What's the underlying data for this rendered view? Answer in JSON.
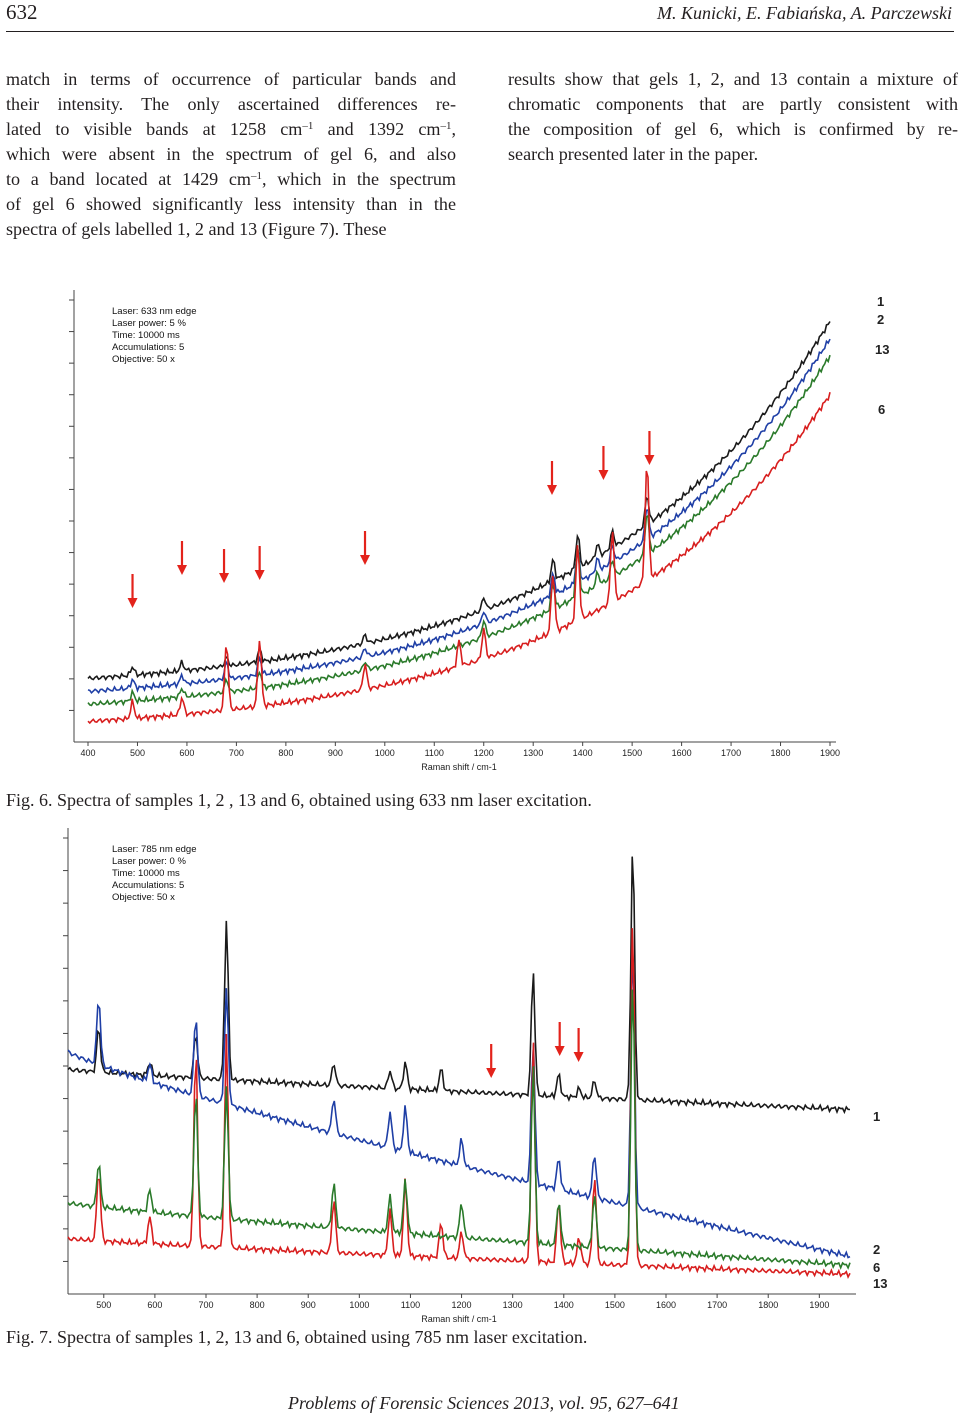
{
  "header": {
    "page_number": "632",
    "authors": "M. Kunicki, E. Fabiańska, A. Parczewski"
  },
  "body_left": [
    "match in terms of occurrence of particular bands and",
    "their intensity. The only ascertained differences re-",
    "lated to visible bands at 1258 cm",
    "which were absent in the spectrum of gel 6, and also",
    "to a band located at 1429 cm",
    "of gel 6 showed significantly less intensity than in the",
    "spectra of gels labelled 1, 2 and 13 (Figure 7). These"
  ],
  "body_left_fragments": {
    "line3_sup1": "–1",
    "line3_mid": " and 1392 cm",
    "line3_sup2": "–1",
    "line3_end": ",",
    "line5_sup": "–1",
    "line5_end": ", which in the spectrum"
  },
  "body_right": [
    "results show that gels 1, 2, and 13 contain a mixture of",
    "chromatic components that are partly consistent with",
    "the composition of gel 6, which is confirmed by re-",
    "search presented later in the paper."
  ],
  "figure6": {
    "caption": "Fig. 6. Spectra of samples 1, 2 , 13 and 6, obtained using 633 nm laser excitation.",
    "info": [
      "Laser: 633 nm edge",
      "Laser power: 5 %",
      "Time: 10000 ms",
      "Accumulations: 5",
      "Objective: 50 x"
    ],
    "xlabel": "Raman shift / cm-1",
    "ticks": [
      "400",
      "500",
      "600",
      "700",
      "800",
      "900",
      "1000",
      "1100",
      "1200",
      "1300",
      "1400",
      "1500",
      "1600",
      "1700",
      "1800",
      "1900"
    ],
    "series_labels": [
      "1",
      "2",
      "13",
      "6"
    ],
    "colors": {
      "1": "#1a1a1a",
      "2": "#1f3fa6",
      "13": "#2a7a2a",
      "6": "#d81e1e",
      "arrow": "#e3231b"
    }
  },
  "figure7": {
    "caption": "Fig. 7. Spectra of samples 1, 2, 13 and 6, obtained using 785 nm laser excitation.",
    "info": [
      "Laser: 785 nm edge",
      "Laser power: 0 %",
      "Time: 10000 ms",
      "Accumulations: 5",
      "Objective: 50 x"
    ],
    "xlabel": "Raman shift / cm-1",
    "ticks": [
      "500",
      "600",
      "700",
      "800",
      "900",
      "1000",
      "1100",
      "1200",
      "1300",
      "1400",
      "1500",
      "1600",
      "1700",
      "1800",
      "1900"
    ],
    "series_labels": [
      "1",
      "2",
      "6",
      "13"
    ]
  },
  "chart_data": [
    {
      "type": "line",
      "xlabel": "Raman shift / cm-1",
      "xlim": [
        400,
        1900
      ],
      "x_ticks": [
        400,
        500,
        600,
        700,
        800,
        900,
        1000,
        1100,
        1200,
        1300,
        1400,
        1500,
        1600,
        1700,
        1800,
        1900
      ],
      "series": [
        {
          "name": "1",
          "color": "#1a1a1a",
          "baseline_start": 0.12,
          "baseline_end": 0.95,
          "offset": 0.0,
          "peaks": [
            [
              490,
              0.02
            ],
            [
              590,
              0.02
            ],
            [
              680,
              0.02
            ],
            [
              747,
              0.03
            ],
            [
              960,
              0.02
            ],
            [
              1200,
              0.03
            ],
            [
              1340,
              0.05
            ],
            [
              1390,
              0.08
            ],
            [
              1430,
              0.03
            ],
            [
              1460,
              0.04
            ],
            [
              1530,
              0.07
            ]
          ]
        },
        {
          "name": "2",
          "color": "#1f3fa6",
          "baseline_start": 0.09,
          "baseline_end": 0.91,
          "offset": 0.0,
          "peaks": [
            [
              490,
              0.02
            ],
            [
              590,
              0.02
            ],
            [
              680,
              0.04
            ],
            [
              747,
              0.04
            ],
            [
              960,
              0.02
            ],
            [
              1200,
              0.03
            ],
            [
              1340,
              0.05
            ],
            [
              1390,
              0.08
            ],
            [
              1430,
              0.03
            ],
            [
              1460,
              0.04
            ],
            [
              1530,
              0.08
            ]
          ]
        },
        {
          "name": "13",
          "color": "#2a7a2a",
          "baseline_start": 0.06,
          "baseline_end": 0.87,
          "offset": 0.0,
          "peaks": [
            [
              490,
              0.02
            ],
            [
              590,
              0.02
            ],
            [
              680,
              0.03
            ],
            [
              747,
              0.04
            ],
            [
              960,
              0.02
            ],
            [
              1200,
              0.04
            ],
            [
              1340,
              0.06
            ],
            [
              1390,
              0.12
            ],
            [
              1430,
              0.03
            ],
            [
              1460,
              0.04
            ],
            [
              1530,
              0.1
            ]
          ]
        },
        {
          "name": "6",
          "color": "#d81e1e",
          "baseline_start": 0.02,
          "baseline_end": 0.78,
          "offset": 0.0,
          "peaks": [
            [
              490,
              0.04
            ],
            [
              590,
              0.04
            ],
            [
              680,
              0.16
            ],
            [
              747,
              0.16
            ],
            [
              960,
              0.06
            ],
            [
              1150,
              0.06
            ],
            [
              1200,
              0.07
            ],
            [
              1340,
              0.14
            ],
            [
              1390,
              0.18
            ],
            [
              1460,
              0.17
            ],
            [
              1530,
              0.28
            ]
          ]
        }
      ],
      "arrows_cm": [
        490,
        590,
        675,
        747,
        960,
        1338,
        1442,
        1535
      ]
    },
    {
      "type": "line",
      "xlabel": "Raman shift / cm-1",
      "xlim": [
        430,
        1960
      ],
      "x_ticks": [
        500,
        600,
        700,
        800,
        900,
        1000,
        1100,
        1200,
        1300,
        1400,
        1500,
        1600,
        1700,
        1800,
        1900
      ],
      "series": [
        {
          "name": "1",
          "color": "#1a1a1a",
          "baseline_start": 0.48,
          "baseline_end": 0.39,
          "peaks": [
            [
              490,
              0.1
            ],
            [
              590,
              0.03
            ],
            [
              680,
              0.1
            ],
            [
              740,
              0.36
            ],
            [
              950,
              0.05
            ],
            [
              1060,
              0.04
            ],
            [
              1090,
              0.06
            ],
            [
              1160,
              0.05
            ],
            [
              1340,
              0.28
            ],
            [
              1390,
              0.05
            ],
            [
              1430,
              0.02
            ],
            [
              1460,
              0.04
            ],
            [
              1535,
              0.58
            ]
          ]
        },
        {
          "name": "2",
          "color": "#1f3fa6",
          "baseline_start": 0.52,
          "baseline_end": 0.06,
          "peaks": [
            [
              490,
              0.15
            ],
            [
              590,
              0.04
            ],
            [
              680,
              0.18
            ],
            [
              740,
              0.26
            ],
            [
              950,
              0.08
            ],
            [
              1060,
              0.08
            ],
            [
              1090,
              0.1
            ],
            [
              1200,
              0.06
            ],
            [
              1340,
              0.32
            ],
            [
              1390,
              0.07
            ],
            [
              1460,
              0.1
            ],
            [
              1535,
              0.6
            ]
          ]
        },
        {
          "name": "6",
          "color": "#d81e1e",
          "baseline_start": 0.1,
          "baseline_end": 0.02,
          "peaks": [
            [
              490,
              0.16
            ],
            [
              590,
              0.06
            ],
            [
              680,
              0.45
            ],
            [
              740,
              0.48
            ],
            [
              950,
              0.12
            ],
            [
              1060,
              0.1
            ],
            [
              1090,
              0.17
            ],
            [
              1160,
              0.08
            ],
            [
              1200,
              0.06
            ],
            [
              1340,
              0.5
            ],
            [
              1390,
              0.14
            ],
            [
              1430,
              0.06
            ],
            [
              1460,
              0.2
            ],
            [
              1535,
              0.8
            ]
          ]
        },
        {
          "name": "13",
          "color": "#2a7a2a",
          "baseline_start": 0.18,
          "baseline_end": 0.04,
          "peaks": [
            [
              490,
              0.1
            ],
            [
              590,
              0.05
            ],
            [
              680,
              0.28
            ],
            [
              740,
              0.3
            ],
            [
              950,
              0.1
            ],
            [
              1060,
              0.08
            ],
            [
              1090,
              0.12
            ],
            [
              1200,
              0.08
            ],
            [
              1340,
              0.4
            ],
            [
              1390,
              0.1
            ],
            [
              1460,
              0.12
            ],
            [
              1535,
              0.62
            ]
          ]
        }
      ],
      "arrows_cm": [
        1258,
        1392,
        1429
      ]
    }
  ],
  "footer": "Problems of Forensic Sciences 2013, vol. 95, 627–641"
}
